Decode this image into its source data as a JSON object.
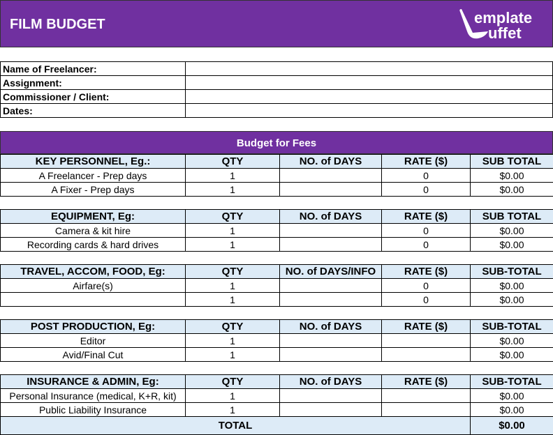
{
  "header": {
    "title": "FILM BUDGET",
    "logo_text": "Template Buffet",
    "color": "#7030a0"
  },
  "info": [
    {
      "label": "Name of Freelancer:",
      "value": ""
    },
    {
      "label": "Assignment:",
      "value": ""
    },
    {
      "label": "Commissioner / Client:",
      "value": ""
    },
    {
      "label": "Dates:",
      "value": ""
    }
  ],
  "budget_title": "Budget for Fees",
  "sections": [
    {
      "cols": [
        "KEY PERSONNEL, Eg.:",
        "QTY",
        "NO. of DAYS",
        "RATE ($)",
        "SUB TOTAL"
      ],
      "rows": [
        [
          "A Freelancer - Prep days",
          "1",
          "",
          "0",
          "$0.00"
        ],
        [
          "A Fixer - Prep days",
          "1",
          "",
          "0",
          "$0.00"
        ]
      ]
    },
    {
      "cols": [
        "EQUIPMENT, Eg:",
        "QTY",
        "NO. of DAYS",
        "RATE ($)",
        "SUB TOTAL"
      ],
      "rows": [
        [
          "Camera & kit hire",
          "1",
          "",
          "0",
          "$0.00"
        ],
        [
          "Recording cards & hard drives",
          "1",
          "",
          "0",
          "$0.00"
        ]
      ]
    },
    {
      "cols": [
        "TRAVEL, ACCOM, FOOD, Eg:",
        "QTY",
        "NO. of DAYS/INFO",
        "RATE ($)",
        "SUB-TOTAL"
      ],
      "rows": [
        [
          "Airfare(s)",
          "1",
          "",
          "0",
          "$0.00"
        ],
        [
          "",
          "1",
          "",
          "0",
          "$0.00"
        ]
      ]
    },
    {
      "cols": [
        "POST PRODUCTION, Eg:",
        "QTY",
        "NO. of DAYS",
        "RATE ($)",
        "SUB-TOTAL"
      ],
      "rows": [
        [
          "Editor",
          "1",
          "",
          "",
          "$0.00"
        ],
        [
          "Avid/Final Cut",
          "1",
          "",
          "",
          "$0.00"
        ]
      ]
    },
    {
      "cols": [
        "INSURANCE & ADMIN, Eg:",
        "QTY",
        "NO. of DAYS",
        "RATE ($)",
        "SUB-TOTAL"
      ],
      "rows": [
        [
          "Personal Insurance (medical, K+R, kit)",
          "1",
          "",
          "",
          "$0.00"
        ],
        [
          "Public Liability Insurance",
          "1",
          "",
          "",
          "$0.00"
        ]
      ]
    }
  ],
  "total": {
    "label": "TOTAL",
    "value": "$0.00"
  }
}
